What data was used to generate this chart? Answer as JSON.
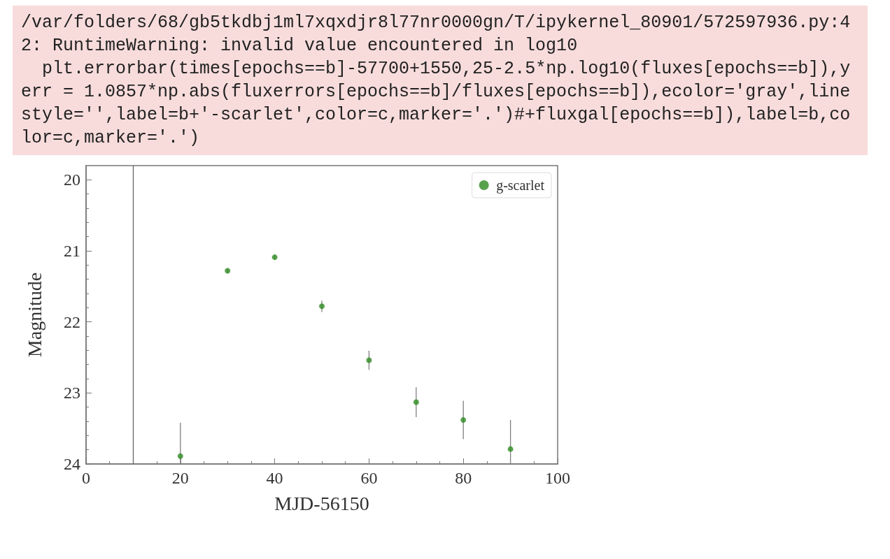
{
  "chart_data": {
    "type": "scatter",
    "annotations": [
      "/var/folders/68/gb5tkdbj1ml7xqxdjr8l77nr0000gn/T/ipykernel_80901/572597936.py:42: RuntimeWarning: invalid value encountered in log10\n  plt.errorbar(times[epochs==b]-57700+1550,25-2.5*np.log10(fluxes[epochs==b]),yerr = 1.0857*np.abs(fluxerrors[epochs==b]/fluxes[epochs==b]),ecolor='gray',linestyle='',label=b+'-scarlet',color=c,marker='.')#+fluxgal[epochs==b]),label=b,color=c,marker='.')"
    ],
    "x": [
      20,
      30,
      40,
      50,
      60,
      70,
      80,
      90
    ],
    "series": [
      {
        "name": "g-scarlet",
        "color": "#2e8b22",
        "values": [
          23.89,
          21.28,
          21.09,
          21.78,
          22.54,
          23.13,
          23.38,
          23.79
        ],
        "errors": [
          [
            23.42,
            24
          ],
          0.03,
          0.03,
          0.08,
          0.135,
          0.21,
          0.27,
          [
            23.38,
            24
          ]
        ]
      }
    ],
    "xlabel": "MJD-56150",
    "ylabel": "Magnitude",
    "xlim": [
      0,
      100
    ],
    "xticks": [
      0,
      20,
      40,
      60,
      80,
      100
    ],
    "ylim": [
      24,
      19.8
    ],
    "yticks": [
      20,
      21,
      22,
      23,
      24
    ],
    "ref_lines": [
      {
        "axis": "x",
        "value": 10,
        "color": "#666666"
      }
    ],
    "legend": "top right",
    "marker": "circle",
    "grid": false
  }
}
